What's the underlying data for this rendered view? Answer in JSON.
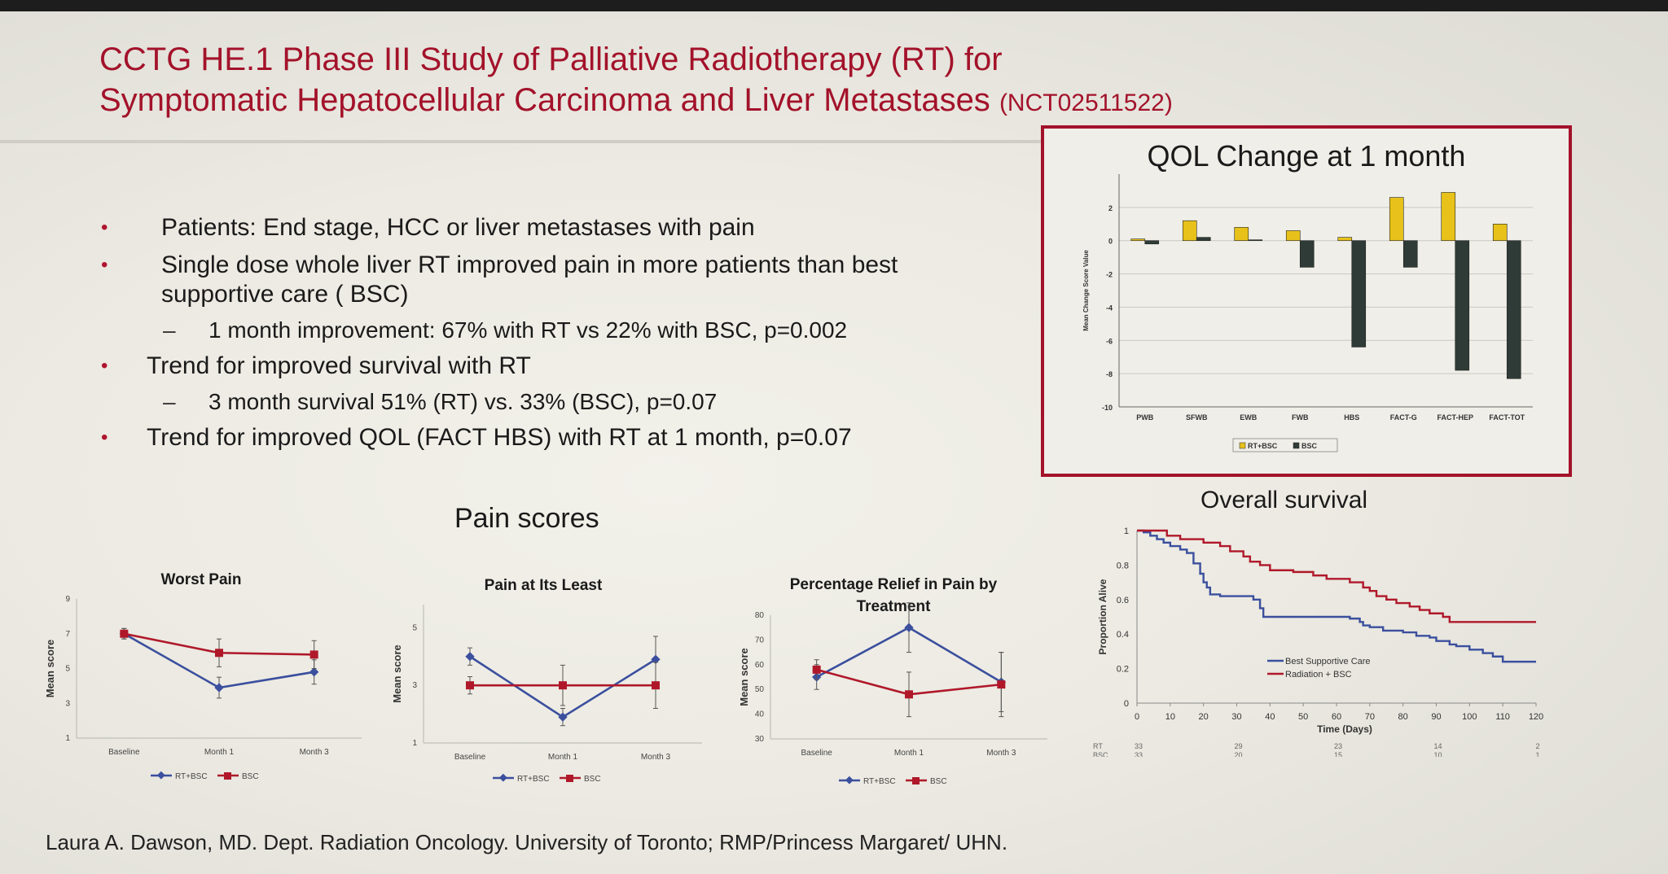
{
  "title": {
    "line1": "CCTG HE.1 Phase III Study of Palliative Radiotherapy (RT) for",
    "line2": "Symptomatic Hepatocellular Carcinoma and Liver Metastases",
    "trial_id": "(NCT02511522)"
  },
  "bullets": {
    "b1": "Patients: End stage, HCC or liver metastases with pain",
    "b2_line1": "Single dose whole liver RT improved pain in more patients than best",
    "b2_line2": "supportive care ( BSC)",
    "b2_sub": "1 month improvement: 67% with  RT vs 22% with BSC, p=0.002",
    "b3": "Trend for improved survival with RT",
    "b3_sub": "3 month survival 51% (RT) vs. 33% (BSC), p=0.07",
    "b4": "Trend for improved QOL (FACT HBS) with RT at 1 month, p=0.07",
    "dash": "–"
  },
  "pain_section_title": "Pain scores",
  "os_section_title": "Overall survival",
  "footer": "Laura A. Dawson, MD. Dept. Radiation Oncology. University of Toronto; RMP/Princess Margaret/ UHN.",
  "colors": {
    "rt_line": "#3b4f9e",
    "bsc_line": "#b0182a",
    "rt_bar": "#e8c21a",
    "bsc_bar": "#2f3b36",
    "title": "#a3122a"
  },
  "chart_data": [
    {
      "id": "qol",
      "type": "bar",
      "title": "QOL Change at 1 month",
      "ylabel": "Mean Change Score Value",
      "categories": [
        "PWB",
        "SFWB",
        "EWB",
        "FWB",
        "HBS",
        "FACT-G",
        "FACT-HEP",
        "FACT-TOT"
      ],
      "series": [
        {
          "name": "RT+BSC",
          "values": [
            0.1,
            1.2,
            0.8,
            0.6,
            0.2,
            2.6,
            2.9,
            1.0
          ]
        },
        {
          "name": "BSC",
          "values": [
            -0.2,
            0.2,
            0.05,
            -1.6,
            -6.4,
            -1.6,
            -7.8,
            -8.3
          ]
        }
      ],
      "yticks": [
        2,
        0,
        -2,
        -4,
        -6,
        -8,
        -10
      ],
      "ylim": [
        -10,
        4
      ],
      "legend_position": "bottom",
      "grid": true
    },
    {
      "id": "worst",
      "type": "line",
      "title": "Worst Pain",
      "ylabel": "Mean score",
      "categories": [
        "Baseline",
        "Month 1",
        "Month 3"
      ],
      "series": [
        {
          "name": "RT+BSC",
          "values": [
            7.0,
            3.9,
            4.8
          ],
          "err": [
            0.3,
            0.6,
            0.7
          ]
        },
        {
          "name": "BSC",
          "values": [
            7.0,
            5.9,
            5.8
          ],
          "err": [
            0.3,
            0.8,
            0.8
          ]
        }
      ],
      "yticks": [
        1,
        3,
        5,
        7,
        9
      ],
      "ylim": [
        1,
        9
      ],
      "legend_position": "bottom"
    },
    {
      "id": "least",
      "type": "line",
      "title": "Pain at Its Least",
      "ylabel": "Mean score",
      "categories": [
        "Baseline",
        "Month 1",
        "Month 3"
      ],
      "series": [
        {
          "name": "RT+BSC",
          "values": [
            4.0,
            1.9,
            3.9
          ],
          "err": [
            0.3,
            0.3,
            0.8
          ]
        },
        {
          "name": "BSC",
          "values": [
            3.0,
            3.0,
            3.0
          ],
          "err": [
            0.3,
            0.7,
            0.8
          ]
        }
      ],
      "yticks": [
        1,
        3,
        5
      ],
      "ylim": [
        1,
        5.8
      ],
      "legend_position": "bottom"
    },
    {
      "id": "relief",
      "type": "line",
      "title": "Percentage Relief in Pain by Treatment",
      "ylabel": "Mean score",
      "categories": [
        "Baseline",
        "Month 1",
        "Month 3"
      ],
      "series": [
        {
          "name": "RT+BSC",
          "values": [
            55,
            75,
            53
          ],
          "err": [
            5,
            10,
            12
          ]
        },
        {
          "name": "BSC",
          "values": [
            58,
            48,
            52
          ],
          "err": [
            4,
            9,
            13
          ]
        }
      ],
      "yticks": [
        30,
        40,
        50,
        60,
        70,
        80
      ],
      "ylim": [
        30,
        80
      ],
      "legend_position": "bottom"
    },
    {
      "id": "os",
      "type": "line",
      "title": "Overall survival",
      "xlabel": "Time (Days)",
      "ylabel": "Proportion Alive",
      "xticks": [
        0,
        10,
        20,
        30,
        40,
        50,
        60,
        70,
        80,
        90,
        100,
        110,
        120
      ],
      "yticks": [
        0,
        0.2,
        0.4,
        0.6,
        0.8,
        1
      ],
      "xlim": [
        0,
        120
      ],
      "ylim": [
        0,
        1
      ],
      "legend_position": "center-right",
      "series": [
        {
          "name": "Best Supportive Care",
          "x": [
            0,
            2,
            4,
            6,
            8,
            10,
            13,
            15,
            17,
            19,
            20,
            21,
            22,
            25,
            35,
            37,
            38,
            64,
            67,
            68,
            70,
            74,
            80,
            84,
            88,
            90,
            94,
            96,
            100,
            104,
            107,
            110,
            120
          ],
          "y": [
            1,
            0.99,
            0.97,
            0.95,
            0.93,
            0.91,
            0.89,
            0.87,
            0.81,
            0.75,
            0.7,
            0.67,
            0.63,
            0.62,
            0.6,
            0.55,
            0.5,
            0.49,
            0.47,
            0.45,
            0.44,
            0.42,
            0.41,
            0.39,
            0.38,
            0.36,
            0.34,
            0.33,
            0.31,
            0.29,
            0.27,
            0.24,
            0.24
          ]
        },
        {
          "name": "Radiation + BSC",
          "x": [
            0,
            5,
            9,
            13,
            20,
            25,
            28,
            32,
            34,
            37,
            40,
            47,
            53,
            57,
            64,
            68,
            70,
            72,
            75,
            78,
            82,
            85,
            88,
            92,
            94,
            100,
            120
          ],
          "y": [
            1,
            1,
            0.97,
            0.95,
            0.93,
            0.91,
            0.88,
            0.85,
            0.82,
            0.8,
            0.77,
            0.76,
            0.74,
            0.72,
            0.7,
            0.67,
            0.65,
            0.62,
            0.6,
            0.58,
            0.56,
            0.54,
            0.52,
            0.5,
            0.47,
            0.47,
            0.47
          ]
        }
      ],
      "at_risk": {
        "labels": [
          "RT",
          "BSC"
        ],
        "values": [
          [
            "33",
            "29",
            "23",
            "14",
            "2"
          ],
          [
            "33",
            "20",
            "15",
            "10",
            "1"
          ]
        ],
        "x": [
          0,
          30,
          60,
          90,
          120
        ]
      }
    }
  ]
}
